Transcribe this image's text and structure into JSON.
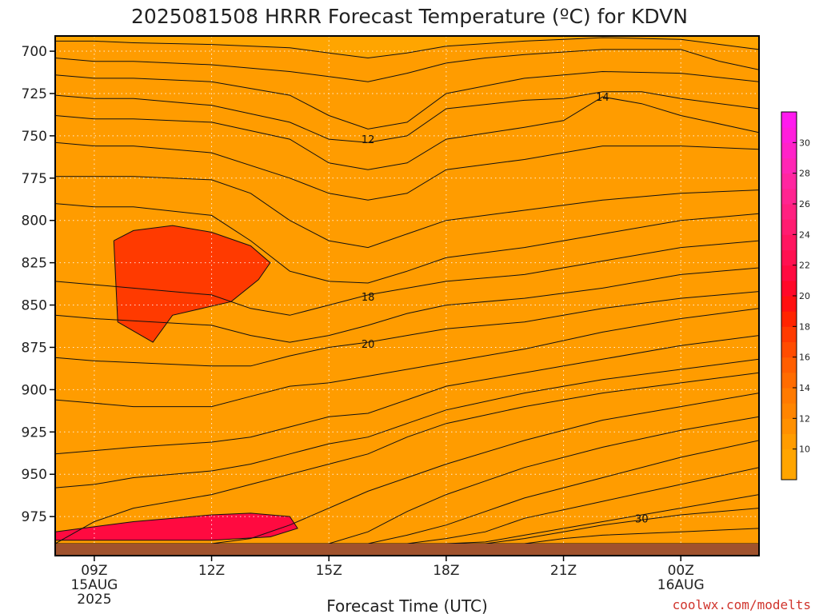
{
  "chart_data": {
    "type": "heatmap",
    "title": "2025081508 HRRR Forecast Temperature (ºC) for KDVN",
    "xlabel": "Forecast Time (UTC)",
    "ylabel": "",
    "credit": "coolwx.com/modelts",
    "y_axis": {
      "unit": "hPa",
      "inverted": true,
      "range": [
        991,
        691
      ],
      "ticks": [
        700,
        725,
        750,
        775,
        800,
        825,
        850,
        875,
        900,
        925,
        950,
        975
      ],
      "tick_labels": [
        "700",
        "725",
        "750",
        "775",
        "800",
        "825",
        "850",
        "875",
        "900",
        "925",
        "950",
        "975"
      ]
    },
    "x_axis": {
      "unit": "forecast hour",
      "range": [
        8,
        26
      ],
      "ticks": [
        {
          "hour": 9,
          "lines": [
            "09Z",
            "15AUG",
            "2025"
          ]
        },
        {
          "hour": 12,
          "lines": [
            "12Z"
          ]
        },
        {
          "hour": 15,
          "lines": [
            "15Z"
          ]
        },
        {
          "hour": 18,
          "lines": [
            "18Z"
          ]
        },
        {
          "hour": 21,
          "lines": [
            "21Z"
          ]
        },
        {
          "hour": 24,
          "lines": [
            "00Z",
            "16AUG"
          ]
        }
      ]
    },
    "grid": true,
    "colorbar": {
      "placement": "right",
      "ticks": [
        10,
        12,
        14,
        16,
        18,
        20,
        22,
        24,
        26,
        28,
        30
      ],
      "levels": [
        8,
        10,
        11,
        12,
        13,
        14,
        15,
        16,
        17,
        18,
        19,
        20,
        21,
        22,
        23,
        24,
        25,
        26,
        27,
        28,
        29,
        30,
        31,
        32
      ],
      "colors": [
        "#ffa500",
        "#ff9c00",
        "#ff9000",
        "#ff8500",
        "#ff7a00",
        "#ff6c00",
        "#ff5e00",
        "#ff4c00",
        "#ff3a00",
        "#ff2400",
        "#ff1010",
        "#ff0828",
        "#ff0a40",
        "#ff1050",
        "#ff1660",
        "#ff1c70",
        "#ff2080",
        "#ff2490",
        "#ff26a0",
        "#ff26b4",
        "#ff22c8",
        "#ff1edc",
        "#ff1aee"
      ]
    },
    "contour_labels": [
      {
        "value": 12,
        "hour": 16,
        "pressure": 752
      },
      {
        "value": 14,
        "hour": 22,
        "pressure": 727
      },
      {
        "value": 18,
        "hour": 16,
        "pressure": 845
      },
      {
        "value": 20,
        "hour": 16,
        "pressure": 873
      },
      {
        "value": 30,
        "hour": 23,
        "pressure": 976
      }
    ],
    "isotherms": [
      {
        "value": 10,
        "x": [
          8,
          9,
          10,
          12,
          14,
          15,
          16,
          17,
          18,
          20,
          22,
          24,
          25,
          26
        ],
        "y": [
          694,
          694,
          695,
          696,
          698,
          701,
          704,
          701,
          697,
          694,
          692,
          693,
          696,
          699
        ]
      },
      {
        "value": 11,
        "x": [
          8,
          9,
          10,
          12,
          14,
          15,
          16,
          17,
          18,
          19,
          20,
          22,
          24,
          25,
          26
        ],
        "y": [
          704,
          706,
          706,
          708,
          712,
          715,
          718,
          713,
          707,
          704,
          702,
          699,
          699,
          706,
          711
        ]
      },
      {
        "value": 12,
        "x": [
          8,
          9,
          10,
          12,
          14,
          15,
          16,
          17,
          18,
          20,
          21,
          22,
          24,
          26
        ],
        "y": [
          714,
          716,
          716,
          718,
          726,
          738,
          746,
          742,
          725,
          716,
          714,
          712,
          713,
          718
        ]
      },
      {
        "value": 13,
        "x": [
          8,
          9,
          10,
          12,
          14,
          15,
          16,
          17,
          18,
          20,
          21,
          22,
          23,
          24,
          26
        ],
        "y": [
          726,
          728,
          728,
          732,
          742,
          752,
          754,
          750,
          734,
          729,
          728,
          724,
          724,
          728,
          734
        ]
      },
      {
        "value": 14,
        "x": [
          8,
          9,
          10,
          12,
          14,
          15,
          16,
          17,
          18,
          20,
          21,
          22,
          23,
          24,
          26
        ],
        "y": [
          738,
          740,
          740,
          742,
          752,
          766,
          770,
          766,
          752,
          745,
          741,
          727,
          731,
          738,
          748
        ]
      },
      {
        "value": 15,
        "x": [
          8,
          9,
          10,
          12,
          14,
          15,
          16,
          17,
          18,
          20,
          22,
          24,
          26
        ],
        "y": [
          754,
          756,
          756,
          760,
          775,
          784,
          788,
          784,
          770,
          764,
          756,
          756,
          758
        ]
      },
      {
        "value": 16,
        "x": [
          8,
          9,
          10,
          12,
          13,
          14,
          15,
          16,
          17,
          18,
          20,
          22,
          24,
          26
        ],
        "y": [
          774,
          774,
          774,
          776,
          784,
          800,
          812,
          816,
          808,
          800,
          794,
          788,
          784,
          782
        ]
      },
      {
        "value": 17,
        "x": [
          8,
          9,
          10,
          12,
          13,
          14,
          15,
          16,
          17,
          18,
          20,
          22,
          24,
          26
        ],
        "y": [
          790,
          792,
          792,
          797,
          812,
          830,
          836,
          837,
          830,
          822,
          816,
          808,
          800,
          796
        ]
      },
      {
        "value": 18,
        "x": [
          8,
          9,
          10,
          12,
          13,
          14,
          15,
          16,
          17,
          18,
          20,
          22,
          24,
          26
        ],
        "y": [
          836,
          838,
          840,
          844,
          852,
          856,
          850,
          844,
          840,
          836,
          832,
          824,
          816,
          812
        ]
      },
      {
        "value": 19,
        "x": [
          8,
          9,
          12,
          13,
          14,
          15,
          16,
          17,
          18,
          20,
          22,
          24,
          26
        ],
        "y": [
          856,
          858,
          862,
          868,
          872,
          868,
          862,
          855,
          850,
          846,
          840,
          832,
          828
        ]
      },
      {
        "value": 20,
        "x": [
          8,
          9,
          10,
          12,
          13,
          14,
          15,
          16,
          17,
          18,
          20,
          22,
          24,
          26
        ],
        "y": [
          881,
          883,
          884,
          886,
          886,
          880,
          875,
          872,
          868,
          864,
          860,
          852,
          846,
          842
        ]
      },
      {
        "value": 21,
        "x": [
          8,
          9,
          10,
          12,
          13,
          14,
          15,
          16,
          17,
          18,
          20,
          22,
          24,
          26
        ],
        "y": [
          906,
          908,
          910,
          910,
          904,
          898,
          896,
          892,
          888,
          884,
          876,
          866,
          858,
          852
        ]
      },
      {
        "value": 22,
        "x": [
          8,
          9,
          10,
          12,
          13,
          14,
          15,
          16,
          17,
          18,
          20,
          22,
          24,
          26
        ],
        "y": [
          938,
          936,
          934,
          931,
          928,
          922,
          916,
          914,
          906,
          898,
          890,
          882,
          874,
          868
        ]
      },
      {
        "value": 23,
        "x": [
          8,
          9,
          10,
          12,
          13,
          14,
          15,
          16,
          17,
          18,
          20,
          22,
          24,
          26
        ],
        "y": [
          958,
          956,
          952,
          948,
          944,
          938,
          932,
          928,
          920,
          912,
          902,
          894,
          888,
          882
        ]
      },
      {
        "value": 24,
        "x": [
          8,
          9,
          10,
          12,
          13,
          14,
          15,
          16,
          17,
          18,
          20,
          22,
          24,
          26
        ],
        "y": [
          991,
          978,
          970,
          962,
          956,
          950,
          944,
          938,
          928,
          920,
          910,
          902,
          896,
          890
        ]
      },
      {
        "value": 25,
        "x": [
          8,
          10,
          12,
          13,
          14,
          15,
          16,
          17,
          18,
          20,
          22,
          24,
          26
        ],
        "y": [
          991,
          991,
          991,
          988,
          980,
          970,
          960,
          952,
          944,
          930,
          918,
          910,
          902
        ]
      },
      {
        "value": 26,
        "x": [
          8,
          15,
          16,
          17,
          18,
          19,
          20,
          22,
          24,
          26
        ],
        "y": [
          991,
          991,
          984,
          972,
          962,
          954,
          946,
          934,
          924,
          916
        ]
      },
      {
        "value": 27,
        "x": [
          8,
          16,
          17,
          18,
          19,
          20,
          22,
          24,
          26
        ],
        "y": [
          991,
          991,
          986,
          980,
          972,
          964,
          952,
          940,
          930
        ]
      },
      {
        "value": 28,
        "x": [
          8,
          17,
          18,
          19,
          20,
          22,
          24,
          26
        ],
        "y": [
          991,
          991,
          988,
          984,
          976,
          966,
          956,
          946
        ]
      },
      {
        "value": 29,
        "x": [
          8,
          18,
          19,
          20,
          22,
          24,
          26
        ],
        "y": [
          991,
          991,
          990,
          986,
          978,
          970,
          962
        ]
      },
      {
        "value": 30,
        "x": [
          8,
          19,
          20,
          21,
          22,
          24,
          26
        ],
        "y": [
          991,
          991,
          988,
          984,
          980,
          974,
          970
        ]
      },
      {
        "value": 31,
        "x": [
          8,
          20,
          21,
          22,
          24,
          26
        ],
        "y": [
          991,
          991,
          988,
          986,
          984,
          982
        ]
      },
      {
        "value": 32,
        "x": [
          8,
          26
        ],
        "y": [
          991,
          991
        ]
      }
    ],
    "overlays": [
      {
        "fill_from_level": 17,
        "x": [
          9.5,
          10,
          11,
          12,
          13,
          13.5,
          13.2,
          12.5,
          11,
          10.5,
          9.6,
          9.5
        ],
        "y": [
          812,
          806,
          803,
          807,
          815,
          825,
          835,
          848,
          856,
          872,
          860,
          812
        ]
      },
      {
        "fill_from_level": 21,
        "x": [
          8,
          10,
          12,
          13,
          14,
          14.2,
          13.5,
          12,
          10,
          8
        ],
        "y": [
          984,
          978,
          974,
          973,
          975,
          982,
          987,
          989,
          989,
          989
        ]
      }
    ]
  }
}
